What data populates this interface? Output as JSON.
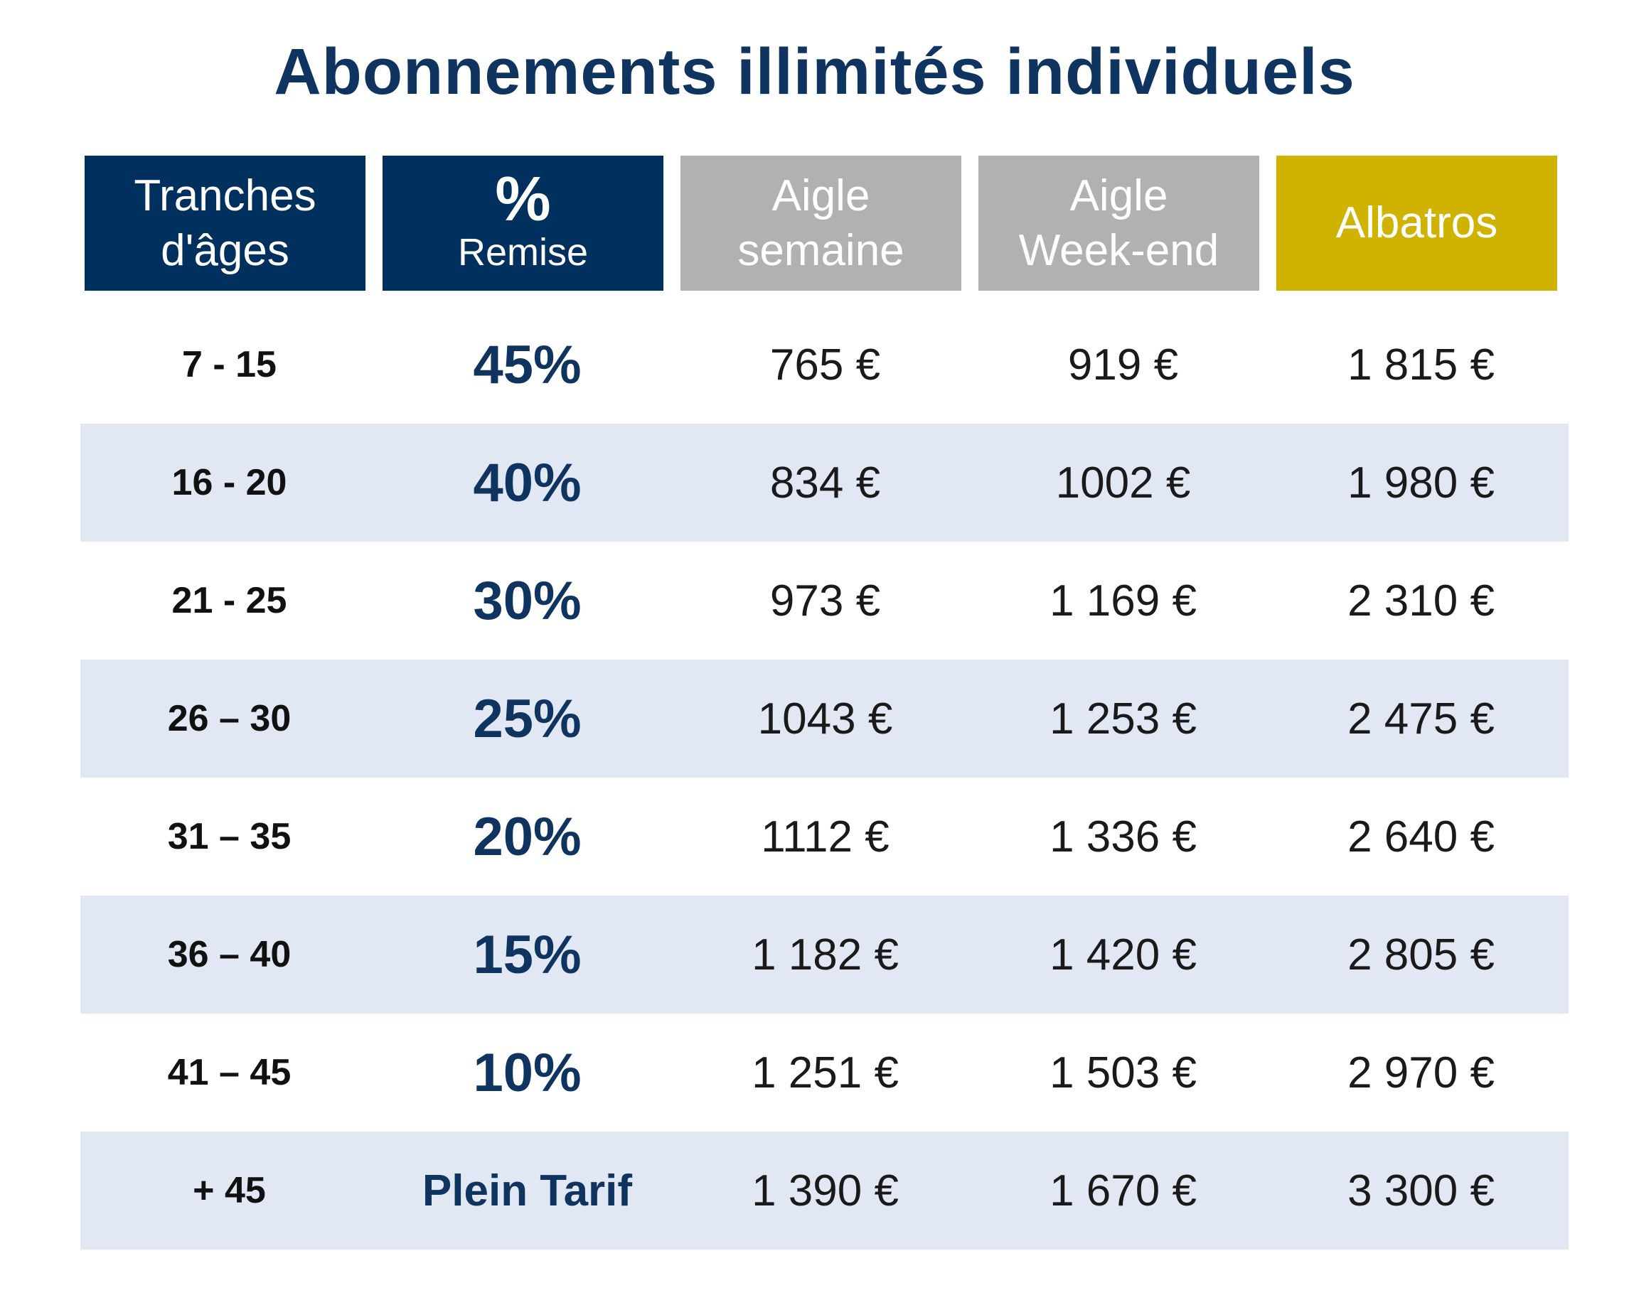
{
  "title": "Abonnements illimités individuels",
  "colors": {
    "navy": "#00305d",
    "grey": "#b1b1b1",
    "gold": "#d0b300",
    "row_shade": "#e1e8f3",
    "title_text": "#0f3460"
  },
  "headers": {
    "age": {
      "line1": "Tranches",
      "line2": "d'âges"
    },
    "discount": {
      "symbol": "%",
      "label": "Remise"
    },
    "aigle_semaine": {
      "line1": "Aigle",
      "line2": "semaine"
    },
    "aigle_weekend": {
      "line1": "Aigle",
      "line2": "Week-end"
    },
    "albatros": {
      "line1": "Albatros"
    }
  },
  "rows": [
    {
      "age": "7 -  15",
      "discount": "45%",
      "aigle_semaine": "765 €",
      "aigle_weekend": "919 €",
      "albatros": "1 815 €"
    },
    {
      "age": "16 - 20",
      "discount": "40%",
      "aigle_semaine": "834 €",
      "aigle_weekend": "1002 €",
      "albatros": "1 980 €"
    },
    {
      "age": "21 - 25",
      "discount": "30%",
      "aigle_semaine": "973 €",
      "aigle_weekend": "1 169 €",
      "albatros": "2 310 €"
    },
    {
      "age": "26 – 30",
      "discount": "25%",
      "aigle_semaine": "1043 €",
      "aigle_weekend": "1 253 €",
      "albatros": "2 475 €"
    },
    {
      "age": "31 – 35",
      "discount": "20%",
      "aigle_semaine": "1112 €",
      "aigle_weekend": "1 336 €",
      "albatros": "2 640 €"
    },
    {
      "age": "36 – 40",
      "discount": "15%",
      "aigle_semaine": "1 182 €",
      "aigle_weekend": "1 420 €",
      "albatros": "2 805 €"
    },
    {
      "age": "41 – 45",
      "discount": "10%",
      "aigle_semaine": "1 251 €",
      "aigle_weekend": "1 503 €",
      "albatros": "2 970 €"
    },
    {
      "age": "+ 45",
      "discount": "Plein Tarif",
      "aigle_semaine": "1 390 €",
      "aigle_weekend": "1 670 €",
      "albatros": "3 300 €"
    }
  ]
}
